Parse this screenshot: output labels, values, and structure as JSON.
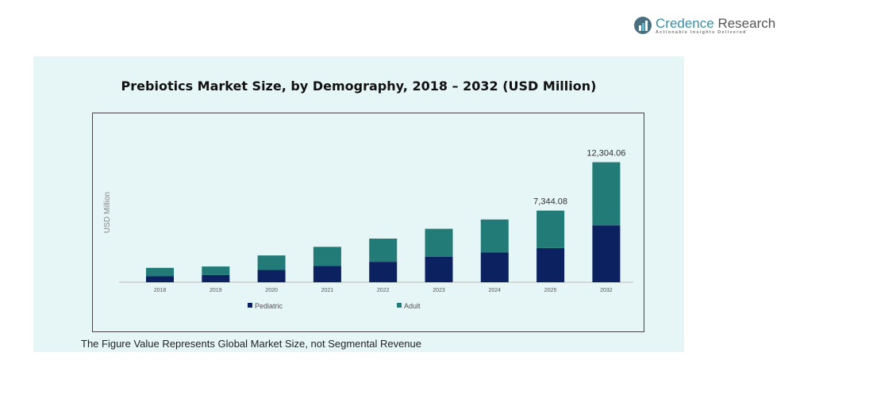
{
  "brand": {
    "name_part1": "Credence",
    "name_part2": " Research",
    "tagline": "Actionable Insights Delivered"
  },
  "footer": "The Figure Value Represents Global Market Size, not Segmental Revenue",
  "chart_data": {
    "type": "bar",
    "stacked": true,
    "title": "Prebiotics Market Size, by Demography, 2018 – 2032 (USD Million)",
    "ylabel": "USD Million",
    "xlabel": "",
    "categories": [
      "2018",
      "2019",
      "2020",
      "2021",
      "2022",
      "2023",
      "2024",
      "2025",
      "2032"
    ],
    "series": [
      {
        "name": "Pediatric",
        "color": "#0c2260",
        "values": [
          610,
          736,
          1257,
          1688,
          2101,
          2604,
          3053,
          3502,
          5833
        ]
      },
      {
        "name": "Adult",
        "color": "#237b78",
        "values": [
          863,
          880,
          1491,
          1940,
          2371,
          2874,
          3377,
          3842,
          6471
        ]
      }
    ],
    "data_labels": {
      "2025": "7,344.08",
      "2032": "12,304.06"
    },
    "ylim": [
      0,
      13000
    ],
    "grid": false,
    "legend": "bottom"
  }
}
